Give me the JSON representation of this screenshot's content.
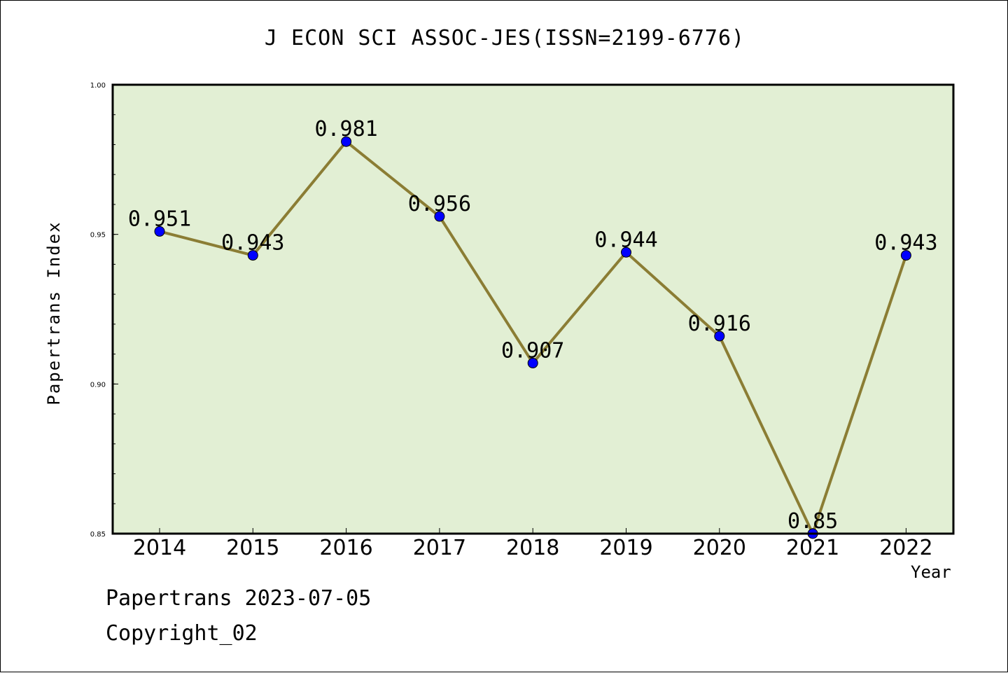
{
  "title": "J ECON SCI ASSOC-JES(ISSN=2199-6776)",
  "footer": {
    "line1": "Papertrans 2023-07-05",
    "line2": "Copyright_02"
  },
  "colors": {
    "plot_bg": "#e2efd4",
    "line": "#8b7d34",
    "marker": "#0000ff"
  },
  "chart_data": {
    "type": "line",
    "title": "J ECON SCI ASSOC-JES(ISSN=2199-6776)",
    "xlabel": "Year",
    "ylabel": "Papertrans Index",
    "categories": [
      "2014",
      "2015",
      "2016",
      "2017",
      "2018",
      "2019",
      "2020",
      "2021",
      "2022"
    ],
    "values": [
      0.951,
      0.943,
      0.981,
      0.956,
      0.907,
      0.944,
      0.916,
      0.85,
      0.943
    ],
    "data_labels": [
      "0.951",
      "0.943",
      "0.981",
      "0.956",
      "0.907",
      "0.944",
      "0.916",
      "0.85",
      "0.943"
    ],
    "ylim": [
      0.85,
      1.0
    ],
    "yticks": [
      0.85,
      0.9,
      0.95,
      1.0
    ],
    "ytick_labels": [
      "0.85",
      "0.90",
      "0.95",
      "1.00"
    ],
    "grid": false,
    "legend": "none"
  }
}
